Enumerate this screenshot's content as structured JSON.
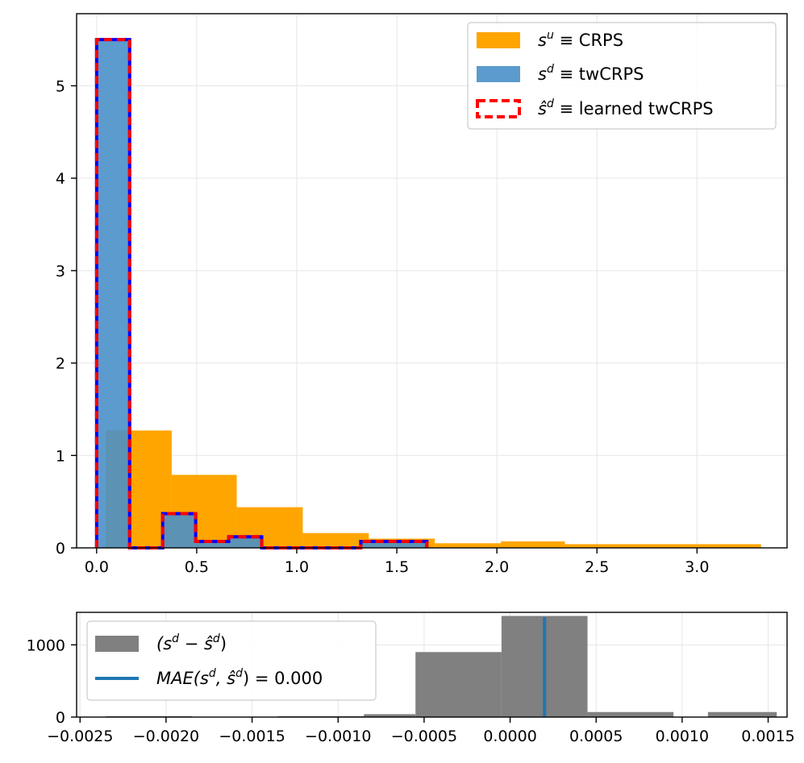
{
  "chart_data": [
    {
      "type": "histogram",
      "title": "",
      "xlabel": "",
      "ylabel": "",
      "xlim": [
        -0.1,
        3.45
      ],
      "ylim": [
        0,
        5.78
      ],
      "grid": true,
      "legend_position": "top-right",
      "xticks": [
        0.0,
        0.5,
        1.0,
        1.5,
        2.0,
        2.5,
        3.0
      ],
      "xtick_labels": [
        "0.0",
        "0.5",
        "1.0",
        "1.5",
        "2.0",
        "2.5",
        "3.0"
      ],
      "yticks": [
        0,
        1,
        2,
        3,
        4,
        5
      ],
      "ytick_labels": [
        "0",
        "1",
        "2",
        "3",
        "4",
        "5"
      ],
      "series": [
        {
          "name": "s^u ≡ CRPS",
          "legend_main": "s",
          "legend_sup": "u",
          "legend_rest": " ≡ CRPS",
          "style": "filled",
          "color": "#ffa500",
          "bins": [
            {
              "x0": 0.045,
              "x1": 0.375,
              "value": 1.27
            },
            {
              "x0": 0.375,
              "x1": 0.7,
              "value": 0.79
            },
            {
              "x0": 0.7,
              "x1": 1.03,
              "value": 0.44
            },
            {
              "x0": 1.03,
              "x1": 1.36,
              "value": 0.16
            },
            {
              "x0": 1.36,
              "x1": 1.69,
              "value": 0.1
            },
            {
              "x0": 1.69,
              "x1": 2.02,
              "value": 0.05
            },
            {
              "x0": 2.02,
              "x1": 2.34,
              "value": 0.07
            },
            {
              "x0": 2.34,
              "x1": 2.67,
              "value": 0.04
            },
            {
              "x0": 2.67,
              "x1": 3.0,
              "value": 0.04
            },
            {
              "x0": 3.0,
              "x1": 3.32,
              "value": 0.04
            }
          ]
        },
        {
          "name": "s^d ≡ twCRPS",
          "legend_main": "s",
          "legend_sup": "d",
          "legend_rest": " ≡ twCRPS",
          "style": "filled",
          "color": "#4a90c8",
          "alpha": 0.9,
          "bins": [
            {
              "x0": 0.0,
              "x1": 0.165,
              "value": 5.5
            },
            {
              "x0": 0.165,
              "x1": 0.33,
              "value": 0.0
            },
            {
              "x0": 0.33,
              "x1": 0.495,
              "value": 0.37
            },
            {
              "x0": 0.495,
              "x1": 0.66,
              "value": 0.07
            },
            {
              "x0": 0.66,
              "x1": 0.825,
              "value": 0.12
            },
            {
              "x0": 0.825,
              "x1": 0.99,
              "value": 0.0
            },
            {
              "x0": 0.99,
              "x1": 1.155,
              "value": 0.0
            },
            {
              "x0": 1.155,
              "x1": 1.32,
              "value": 0.0
            },
            {
              "x0": 1.32,
              "x1": 1.485,
              "value": 0.07
            },
            {
              "x0": 1.485,
              "x1": 1.65,
              "value": 0.07
            }
          ]
        },
        {
          "name": "ŝ^d ≡ learned twCRPS",
          "legend_main": "ŝ",
          "legend_sup": "d",
          "legend_rest": " ≡ learned twCRPS",
          "style": "step-dashed",
          "color": "#ff0000",
          "bins": [
            {
              "x0": 0.0,
              "x1": 0.165,
              "value": 5.5
            },
            {
              "x0": 0.165,
              "x1": 0.33,
              "value": 0.0
            },
            {
              "x0": 0.33,
              "x1": 0.495,
              "value": 0.37
            },
            {
              "x0": 0.495,
              "x1": 0.66,
              "value": 0.07
            },
            {
              "x0": 0.66,
              "x1": 0.825,
              "value": 0.12
            },
            {
              "x0": 0.825,
              "x1": 0.99,
              "value": 0.0
            },
            {
              "x0": 0.99,
              "x1": 1.155,
              "value": 0.0
            },
            {
              "x0": 1.155,
              "x1": 1.32,
              "value": 0.0
            },
            {
              "x0": 1.32,
              "x1": 1.485,
              "value": 0.07
            },
            {
              "x0": 1.485,
              "x1": 1.65,
              "value": 0.07
            }
          ]
        }
      ]
    },
    {
      "type": "histogram",
      "title": "",
      "xlabel": "",
      "ylabel": "",
      "xlim": [
        -0.00252,
        0.00161
      ],
      "ylim": [
        0,
        1450
      ],
      "grid": true,
      "legend_position": "top-left",
      "xticks": [
        -0.0025,
        -0.002,
        -0.0015,
        -0.001,
        -0.0005,
        0.0,
        0.0005,
        0.001,
        0.0015
      ],
      "xtick_labels": [
        "−0.0025",
        "−0.0020",
        "−0.0015",
        "−0.0010",
        "−0.0005",
        "0.0000",
        "0.0005",
        "0.0010",
        "0.0015"
      ],
      "yticks": [
        0,
        1000
      ],
      "ytick_labels": [
        "0",
        "1000"
      ],
      "series": [
        {
          "name": "(s^d − ŝ^d)",
          "legend_text": "(s",
          "legend_sup1": "d",
          "legend_mid": " − ŝ",
          "legend_sup2": "d",
          "legend_end": ")",
          "style": "filled",
          "color": "#808080",
          "bins": [
            {
              "x0": -0.00235,
              "x1": -0.00185,
              "value": 12
            },
            {
              "x0": -0.00185,
              "x1": -0.00135,
              "value": 0
            },
            {
              "x0": -0.00135,
              "x1": -0.00085,
              "value": 12
            },
            {
              "x0": -0.00085,
              "x1": -0.00055,
              "value": 40
            },
            {
              "x0": -0.00055,
              "x1": -5e-05,
              "value": 900
            },
            {
              "x0": -5e-05,
              "x1": 0.00045,
              "value": 1400
            },
            {
              "x0": 0.00045,
              "x1": 0.00095,
              "value": 70
            },
            {
              "x0": 0.00095,
              "x1": 0.00115,
              "value": 0
            },
            {
              "x0": 0.00115,
              "x1": 0.00155,
              "value": 70
            }
          ]
        },
        {
          "name": "MAE(s^d, ŝ^d) = 0.000",
          "legend_text": "MAE(s",
          "legend_sup1": "d",
          "legend_mid": ", ŝ",
          "legend_sup2": "d",
          "legend_end": ") = 0.000",
          "style": "vline",
          "color": "#1f77b4",
          "x": 0.0002
        }
      ]
    }
  ]
}
